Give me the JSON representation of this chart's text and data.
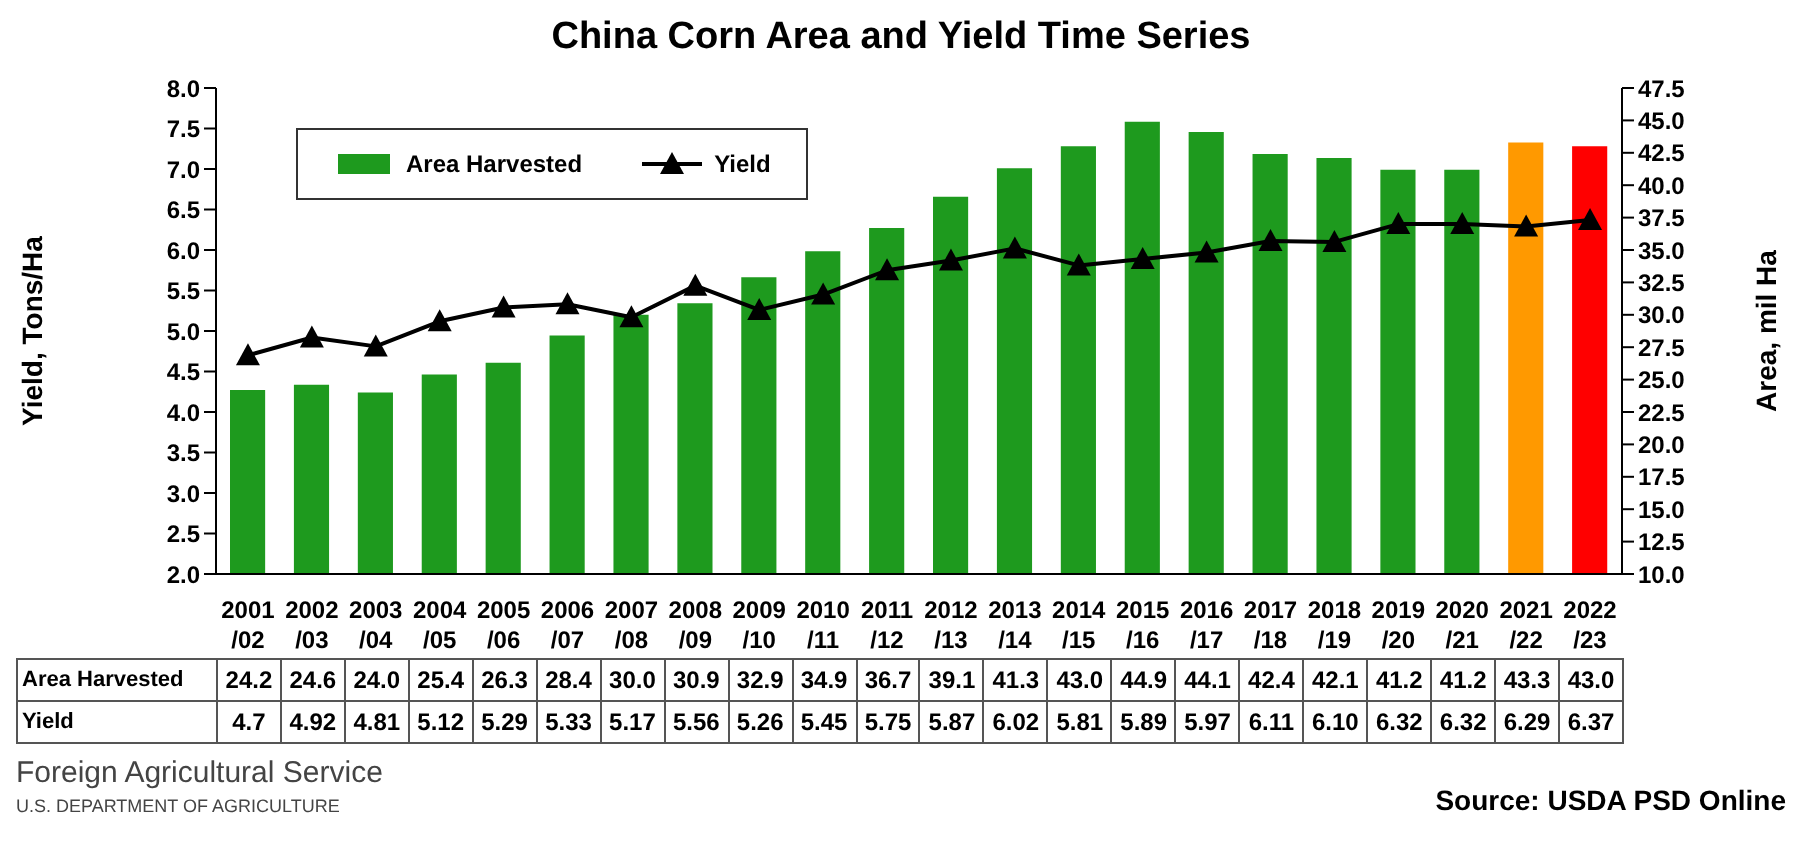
{
  "chart_data": {
    "type": "bar",
    "title": "China Corn Area and Yield Time Series",
    "ylabel": "Yield, Tons/Ha",
    "y2label": "Area, mil Ha",
    "categories": [
      "2001/02",
      "2002/03",
      "2003/04",
      "2004/05",
      "2005/06",
      "2006/07",
      "2007/08",
      "2008/09",
      "2009/10",
      "2010/11",
      "2011/12",
      "2012/13",
      "2013/14",
      "2014/15",
      "2015/16",
      "2016/17",
      "2017/18",
      "2018/19",
      "2019/20",
      "2020/21",
      "2021/22",
      "2022/23"
    ],
    "series": [
      {
        "name": "Area Harvested",
        "axis": "y2",
        "color": "#1e9a1e",
        "colors": [
          "#1e9a1e",
          "#1e9a1e",
          "#1e9a1e",
          "#1e9a1e",
          "#1e9a1e",
          "#1e9a1e",
          "#1e9a1e",
          "#1e9a1e",
          "#1e9a1e",
          "#1e9a1e",
          "#1e9a1e",
          "#1e9a1e",
          "#1e9a1e",
          "#1e9a1e",
          "#1e9a1e",
          "#1e9a1e",
          "#1e9a1e",
          "#1e9a1e",
          "#1e9a1e",
          "#1e9a1e",
          "#ff9900",
          "#ff0000"
        ],
        "values": [
          24.2,
          24.6,
          24.0,
          25.4,
          26.3,
          28.4,
          30.0,
          30.9,
          32.9,
          34.9,
          36.7,
          39.1,
          41.3,
          43.0,
          44.9,
          44.1,
          42.4,
          42.1,
          41.2,
          41.2,
          43.3,
          43.0
        ],
        "value_labels": [
          "24.2",
          "24.6",
          "24.0",
          "25.4",
          "26.3",
          "28.4",
          "30.0",
          "30.9",
          "32.9",
          "34.9",
          "36.7",
          "39.1",
          "41.3",
          "43.0",
          "44.9",
          "44.1",
          "42.4",
          "42.1",
          "41.2",
          "41.2",
          "43.3",
          "43.0"
        ]
      },
      {
        "name": "Yield",
        "type": "line",
        "color": "#000000",
        "values": [
          4.7,
          4.92,
          4.81,
          5.12,
          5.29,
          5.33,
          5.17,
          5.56,
          5.26,
          5.45,
          5.75,
          5.87,
          6.02,
          5.81,
          5.89,
          5.97,
          6.11,
          6.1,
          6.32,
          6.32,
          6.29,
          6.37
        ],
        "value_labels": [
          "4.7",
          "4.92",
          "4.81",
          "5.12",
          "5.29",
          "5.33",
          "5.17",
          "5.56",
          "5.26",
          "5.45",
          "5.75",
          "5.87",
          "6.02",
          "5.81",
          "5.89",
          "5.97",
          "6.11",
          "6.10",
          "6.32",
          "6.32",
          "6.29",
          "6.37"
        ]
      }
    ],
    "ylim": [
      2,
      8
    ],
    "yticks": [
      {
        "value": 2,
        "label": "2.0"
      },
      2.5,
      {
        "value": 3,
        "label": "3.0"
      },
      3.5,
      {
        "value": 4,
        "label": "4.0"
      },
      4.5,
      {
        "value": 5,
        "label": "5.0"
      },
      5.5,
      {
        "value": 6,
        "label": "6.0"
      },
      6.5,
      {
        "value": 7,
        "label": "7.0"
      },
      7.5,
      {
        "value": 8,
        "label": "8.0"
      }
    ],
    "y2lim": [
      10,
      47.5
    ],
    "y2ticks": [
      {
        "value": 10,
        "label": "10.0"
      },
      12.5,
      {
        "value": 15,
        "label": "15.0"
      },
      17.5,
      {
        "value": 20,
        "label": "20.0"
      },
      22.5,
      {
        "value": 25,
        "label": "25.0"
      },
      27.5,
      {
        "value": 30,
        "label": "30.0"
      },
      32.5,
      {
        "value": 35,
        "label": "35.0"
      },
      37.5,
      {
        "value": 40,
        "label": "40.0"
      },
      42.5,
      {
        "value": 45,
        "label": "45.0"
      },
      47.5
    ],
    "legend": "top left",
    "marker": "triangle",
    "line_style": "solid",
    "annotations": [
      "Foreign Agricultural Service",
      "U.S. DEPARTMENT OF AGRICULTURE",
      "Source: USDA PSD Online"
    ]
  }
}
